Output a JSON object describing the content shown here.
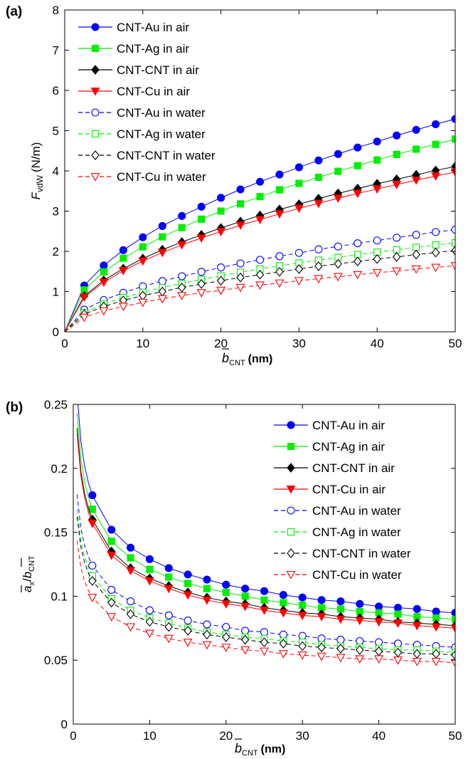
{
  "chart_data": [
    {
      "type": "line",
      "panel_label": "(a)",
      "ylabel": {
        "main": "F",
        "sub": "vdW",
        "unit": "(N/m)"
      },
      "xlabel": {
        "main": "b",
        "sub": "CNT",
        "unit": "(nm)"
      },
      "xlim": [
        0,
        50
      ],
      "ylim": [
        0,
        8
      ],
      "xticks": [
        0,
        10,
        20,
        30,
        40,
        50
      ],
      "yticks": [
        0,
        1,
        2,
        3,
        4,
        5,
        6,
        7,
        8
      ],
      "grid": false,
      "legend_position": "top-left",
      "x": [
        2.5,
        5,
        7.5,
        10,
        12.5,
        15,
        17.5,
        20,
        22.5,
        25,
        27.5,
        30,
        32.5,
        35,
        37.5,
        40,
        42.5,
        45,
        47.5,
        50
      ],
      "series": [
        {
          "name": "CNT-Au in air",
          "color": "#0000ff",
          "marker": "circle",
          "filled": true,
          "dashed": false,
          "values": [
            1.15,
            1.65,
            2.03,
            2.35,
            2.63,
            2.88,
            3.11,
            3.33,
            3.54,
            3.73,
            3.91,
            4.09,
            4.26,
            4.42,
            4.58,
            4.73,
            4.88,
            5.02,
            5.16,
            5.29
          ]
        },
        {
          "name": "CNT-Ag in air",
          "color": "#00ee00",
          "marker": "square",
          "filled": true,
          "dashed": false,
          "values": [
            1.04,
            1.49,
            1.83,
            2.11,
            2.36,
            2.59,
            2.8,
            3.0,
            3.18,
            3.36,
            3.53,
            3.69,
            3.84,
            3.99,
            4.13,
            4.27,
            4.41,
            4.54,
            4.66,
            4.79
          ]
        },
        {
          "name": "CNT-CNT in air",
          "color": "#000000",
          "marker": "diamond",
          "filled": true,
          "dashed": false,
          "values": [
            0.89,
            1.28,
            1.57,
            1.82,
            2.04,
            2.23,
            2.41,
            2.58,
            2.74,
            2.89,
            3.04,
            3.17,
            3.31,
            3.44,
            3.56,
            3.68,
            3.79,
            3.9,
            4.01,
            4.11
          ]
        },
        {
          "name": "CNT-Cu in air",
          "color": "#ff0000",
          "marker": "triangle-down",
          "filled": true,
          "dashed": false,
          "values": [
            0.86,
            1.23,
            1.52,
            1.76,
            1.97,
            2.16,
            2.33,
            2.49,
            2.65,
            2.79,
            2.93,
            3.07,
            3.19,
            3.32,
            3.44,
            3.55,
            3.66,
            3.77,
            3.87,
            3.97
          ]
        },
        {
          "name": "CNT-Au in water",
          "color": "#0000ff",
          "marker": "circle",
          "filled": false,
          "dashed": true,
          "values": [
            0.55,
            0.79,
            0.97,
            1.13,
            1.26,
            1.38,
            1.49,
            1.6,
            1.7,
            1.79,
            1.88,
            1.96,
            2.05,
            2.12,
            2.2,
            2.27,
            2.34,
            2.41,
            2.48,
            2.54
          ]
        },
        {
          "name": "CNT-Ag in water",
          "color": "#00ee00",
          "marker": "square",
          "filled": false,
          "dashed": true,
          "values": [
            0.48,
            0.69,
            0.85,
            0.98,
            1.1,
            1.2,
            1.3,
            1.39,
            1.48,
            1.56,
            1.64,
            1.71,
            1.78,
            1.85,
            1.92,
            1.98,
            2.04,
            2.1,
            2.16,
            2.21
          ]
        },
        {
          "name": "CNT-CNT in water",
          "color": "#000000",
          "marker": "diamond",
          "filled": false,
          "dashed": true,
          "values": [
            0.44,
            0.63,
            0.78,
            0.9,
            1.0,
            1.1,
            1.19,
            1.27,
            1.35,
            1.42,
            1.49,
            1.56,
            1.63,
            1.69,
            1.75,
            1.81,
            1.86,
            1.92,
            1.97,
            2.02
          ]
        },
        {
          "name": "CNT-Cu in water",
          "color": "#ff0000",
          "marker": "triangle-down",
          "filled": false,
          "dashed": true,
          "values": [
            0.36,
            0.52,
            0.63,
            0.73,
            0.82,
            0.9,
            0.97,
            1.03,
            1.1,
            1.16,
            1.21,
            1.27,
            1.32,
            1.37,
            1.42,
            1.47,
            1.51,
            1.56,
            1.6,
            1.64
          ]
        }
      ]
    },
    {
      "type": "line",
      "panel_label": "(b)",
      "ylabel": {
        "num": "a",
        "num_sub": "x",
        "den": "b",
        "den_sub": "CNT"
      },
      "xlabel": {
        "main": "b",
        "sub": "CNT",
        "unit": "(nm)"
      },
      "xlim": [
        0,
        50
      ],
      "ylim": [
        0,
        0.25
      ],
      "xticks": [
        0,
        10,
        20,
        30,
        40,
        50
      ],
      "yticks": [
        0,
        0.05,
        0.1,
        0.15,
        0.2,
        0.25
      ],
      "grid": false,
      "legend_position": "top-right",
      "x": [
        2.5,
        5,
        7.5,
        10,
        12.5,
        15,
        17.5,
        20,
        22.5,
        25,
        27.5,
        30,
        32.5,
        35,
        37.5,
        40,
        42.5,
        45,
        47.5,
        50
      ],
      "series": [
        {
          "name": "CNT-Au in air",
          "color": "#0000ff",
          "marker": "circle",
          "filled": true,
          "dashed": false,
          "values": [
            0.179,
            0.152,
            0.138,
            0.129,
            0.122,
            0.117,
            0.113,
            0.109,
            0.106,
            0.104,
            0.101,
            0.099,
            0.097,
            0.096,
            0.094,
            0.092,
            0.091,
            0.09,
            0.088,
            0.087
          ]
        },
        {
          "name": "CNT-Ag in air",
          "color": "#00ee00",
          "marker": "square",
          "filled": true,
          "dashed": false,
          "values": [
            0.168,
            0.143,
            0.13,
            0.121,
            0.115,
            0.11,
            0.106,
            0.103,
            0.1,
            0.097,
            0.095,
            0.093,
            0.091,
            0.09,
            0.088,
            0.087,
            0.086,
            0.084,
            0.083,
            0.082
          ]
        },
        {
          "name": "CNT-CNT in air",
          "color": "#000000",
          "marker": "diamond",
          "filled": true,
          "dashed": false,
          "values": [
            0.16,
            0.135,
            0.122,
            0.114,
            0.108,
            0.103,
            0.099,
            0.096,
            0.094,
            0.091,
            0.089,
            0.087,
            0.086,
            0.084,
            0.083,
            0.082,
            0.08,
            0.079,
            0.078,
            0.077
          ]
        },
        {
          "name": "CNT-Cu in air",
          "color": "#ff0000",
          "marker": "triangle-down",
          "filled": true,
          "dashed": false,
          "values": [
            0.157,
            0.132,
            0.12,
            0.112,
            0.106,
            0.101,
            0.097,
            0.094,
            0.092,
            0.089,
            0.087,
            0.085,
            0.084,
            0.082,
            0.081,
            0.08,
            0.079,
            0.077,
            0.076,
            0.075
          ]
        },
        {
          "name": "CNT-Au in water",
          "color": "#0000ff",
          "marker": "circle",
          "filled": false,
          "dashed": true,
          "values": [
            0.124,
            0.105,
            0.096,
            0.089,
            0.085,
            0.081,
            0.078,
            0.076,
            0.073,
            0.072,
            0.07,
            0.069,
            0.067,
            0.066,
            0.065,
            0.064,
            0.063,
            0.062,
            0.061,
            0.06
          ]
        },
        {
          "name": "CNT-Ag in water",
          "color": "#00ee00",
          "marker": "square",
          "filled": false,
          "dashed": true,
          "values": [
            0.116,
            0.098,
            0.089,
            0.083,
            0.079,
            0.075,
            0.072,
            0.07,
            0.068,
            0.067,
            0.065,
            0.064,
            0.062,
            0.061,
            0.06,
            0.059,
            0.058,
            0.058,
            0.057,
            0.056
          ]
        },
        {
          "name": "CNT-CNT in water",
          "color": "#000000",
          "marker": "diamond",
          "filled": false,
          "dashed": true,
          "values": [
            0.112,
            0.095,
            0.086,
            0.08,
            0.076,
            0.073,
            0.07,
            0.068,
            0.066,
            0.064,
            0.063,
            0.061,
            0.06,
            0.059,
            0.058,
            0.057,
            0.056,
            0.055,
            0.055,
            0.054
          ]
        },
        {
          "name": "CNT-Cu in water",
          "color": "#ff0000",
          "marker": "triangle-down",
          "filled": false,
          "dashed": true,
          "values": [
            0.099,
            0.084,
            0.076,
            0.071,
            0.067,
            0.064,
            0.062,
            0.06,
            0.058,
            0.057,
            0.055,
            0.054,
            0.053,
            0.052,
            0.051,
            0.051,
            0.05,
            0.049,
            0.049,
            0.048
          ]
        }
      ]
    }
  ]
}
